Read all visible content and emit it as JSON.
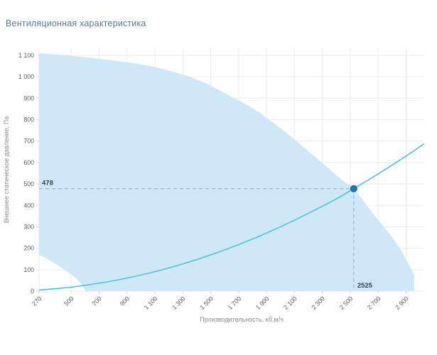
{
  "page": {
    "title": "Вентиляционная характеристика"
  },
  "colors": {
    "title_text": "#5b7b9c",
    "area_fill": "#cfe8f8",
    "curve": "#4dc3d9",
    "marker_fill": "#1b79b5",
    "marker_stroke": "#15618f",
    "dashed_line": "#8fb2cd",
    "grid": "#ececec",
    "tick_mark": "#d9d9d9",
    "tick_text": "#606060",
    "axis_title_text": "#8c8c8c",
    "annotation_text": "#3a444e"
  },
  "chart_data": {
    "type": "area",
    "title": "Вентиляционная характеристика",
    "xlabel": "Производительность, кб.м/ч",
    "ylabel": "Внешнее статическое давление, Па",
    "xlim": [
      270,
      3030
    ],
    "ylim": [
      0,
      1133
    ],
    "x_ticks": [
      270,
      500,
      700,
      900,
      1100,
      1300,
      1500,
      1700,
      1900,
      2100,
      2300,
      2500,
      2700,
      2900
    ],
    "y_ticks": [
      0,
      100,
      200,
      300,
      400,
      500,
      600,
      700,
      800,
      900,
      1000,
      1100
    ],
    "grid": true,
    "legend": false,
    "series": [
      {
        "name": "operating-envelope",
        "type": "area",
        "top_boundary": [
          [
            270,
            1110
          ],
          [
            500,
            1098
          ],
          [
            750,
            1080
          ],
          [
            1010,
            1057
          ],
          [
            1210,
            1027
          ],
          [
            1420,
            983
          ],
          [
            1620,
            917
          ],
          [
            1820,
            845
          ],
          [
            2030,
            745
          ],
          [
            2230,
            636
          ],
          [
            2430,
            525
          ],
          [
            2525,
            478
          ],
          [
            2660,
            365
          ],
          [
            2840,
            215
          ],
          [
            2958,
            76
          ]
        ],
        "right_edge_bottom": [
          2958,
          0
        ],
        "bottom_notch": [
          [
            605,
            0
          ],
          [
            550,
            50
          ],
          [
            474,
            90
          ],
          [
            372,
            133
          ],
          [
            270,
            170
          ]
        ]
      },
      {
        "name": "fan-curve",
        "type": "line",
        "points": [
          [
            270,
            5
          ],
          [
            450,
            15
          ],
          [
            620,
            29
          ],
          [
            800,
            48
          ],
          [
            1000,
            75
          ],
          [
            1200,
            108
          ],
          [
            1400,
            147
          ],
          [
            1600,
            192
          ],
          [
            1800,
            243
          ],
          [
            2000,
            300
          ],
          [
            2200,
            363
          ],
          [
            2400,
            430
          ],
          [
            2525,
            478
          ],
          [
            2700,
            547
          ],
          [
            2900,
            630
          ],
          [
            3030,
            688
          ]
        ]
      }
    ],
    "operating_point": {
      "x": 2525,
      "y": 478,
      "labels": {
        "pressure": "478",
        "flow": "2525"
      }
    }
  }
}
